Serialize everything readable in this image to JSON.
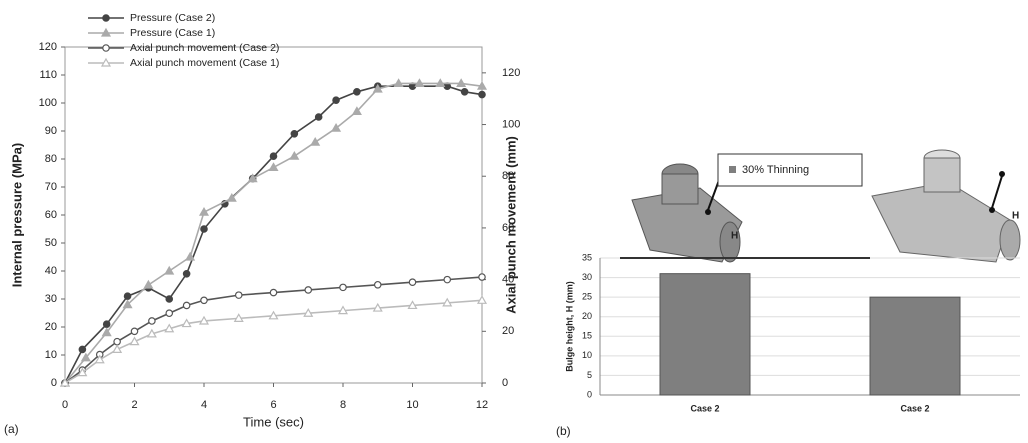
{
  "chart_data": [
    {
      "type": "line",
      "panel_label": "(a)",
      "x_label": "Time (sec)",
      "y_label": "Internal pressure (MPa)",
      "y2_label": "Axial punch movement (mm)",
      "xlim": [
        0,
        12
      ],
      "xticks": [
        0,
        2,
        4,
        6,
        8,
        10,
        12
      ],
      "ylim": [
        0,
        120
      ],
      "yticks": [
        0,
        10,
        20,
        30,
        40,
        50,
        60,
        70,
        80,
        90,
        100,
        110,
        120
      ],
      "y2lim": [
        0,
        130
      ],
      "y2ticks": [
        0,
        20,
        40,
        60,
        80,
        100,
        120
      ],
      "series": [
        {
          "name": "Pressure (Case 2)",
          "color": "#444444",
          "marker": "circle",
          "fill": true,
          "x": [
            0,
            0.5,
            1.2,
            1.8,
            2.4,
            3,
            3.5,
            4,
            4.6,
            5.4,
            6,
            6.6,
            7.3,
            7.8,
            8.4,
            9,
            10,
            11,
            11.5,
            12
          ],
          "values": [
            0,
            12,
            21,
            31,
            34,
            30,
            39,
            55,
            64,
            73,
            81,
            89,
            95,
            101,
            104,
            106,
            106,
            106,
            104,
            103
          ]
        },
        {
          "name": "Pressure (Case 1)",
          "color": "#aaaaaa",
          "marker": "triangle",
          "fill": true,
          "x": [
            0,
            0.6,
            1.2,
            1.8,
            2.4,
            3,
            3.6,
            4,
            4.8,
            5.4,
            6,
            6.6,
            7.2,
            7.8,
            8.4,
            9,
            9.6,
            10.2,
            10.8,
            11.4,
            12
          ],
          "values": [
            0,
            9,
            18,
            28,
            35,
            40,
            45,
            61,
            66,
            73,
            77,
            81,
            86,
            91,
            97,
            105,
            107,
            107,
            107,
            107,
            106
          ]
        },
        {
          "name": "Axial punch movement (Case 2)",
          "color": "#555555",
          "marker": "circle",
          "fill": false,
          "axis": "y2",
          "x": [
            0,
            0.5,
            1,
            1.5,
            2,
            2.5,
            3,
            3.5,
            4,
            5,
            6,
            7,
            8,
            9,
            10,
            11,
            12
          ],
          "values": [
            0,
            5,
            11,
            16,
            20,
            24,
            27,
            30,
            32,
            34,
            35,
            36,
            37,
            38,
            39,
            40,
            41
          ]
        },
        {
          "name": "Axial punch movement (Case 1)",
          "color": "#bbbbbb",
          "marker": "triangle",
          "fill": false,
          "axis": "y2",
          "x": [
            0,
            0.5,
            1,
            1.5,
            2,
            2.5,
            3,
            3.5,
            4,
            5,
            6,
            7,
            8,
            9,
            10,
            11,
            12
          ],
          "values": [
            0,
            4,
            9,
            13,
            16,
            19,
            21,
            23,
            24,
            25,
            26,
            27,
            28,
            29,
            30,
            31,
            32
          ]
        }
      ]
    },
    {
      "type": "bar",
      "panel_label": "(b)",
      "y_label": "Bulge height, H (mm)",
      "annotation": "30% Thinning",
      "part_labels": [
        "H",
        "H"
      ],
      "categories": [
        "Case 2",
        "Case 2"
      ],
      "values": [
        31,
        25
      ],
      "color": "#7f7f7f",
      "ylim": [
        0,
        35
      ],
      "yticks": [
        0,
        5,
        10,
        15,
        20,
        25,
        30,
        35
      ],
      "grid": true
    }
  ]
}
